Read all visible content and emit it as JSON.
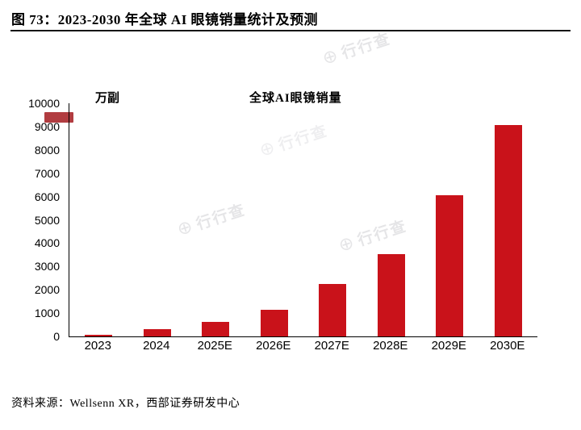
{
  "figure": {
    "title": "图 73：2023-2030 年全球 AI 眼镜销量统计及预测",
    "source": "资料来源：Wellsenn XR，西部证券研发中心"
  },
  "watermark": {
    "text": "行行查",
    "icon": "⊕"
  },
  "chart_data": {
    "type": "bar",
    "title": "2023-2030 年全球 AI 眼镜销量统计及预测",
    "unit_label": "万副",
    "series_name": "全球AI眼镜销量",
    "categories": [
      "2023",
      "2024",
      "2025E",
      "2026E",
      "2027E",
      "2028E",
      "2029E",
      "2030E"
    ],
    "values": [
      50,
      300,
      620,
      1150,
      2250,
      3520,
      6050,
      9050
    ],
    "ylim": [
      0,
      10000
    ],
    "ytick_step": 1000,
    "bar_color": "#c9121a",
    "grid": false,
    "legend_position": "top"
  }
}
